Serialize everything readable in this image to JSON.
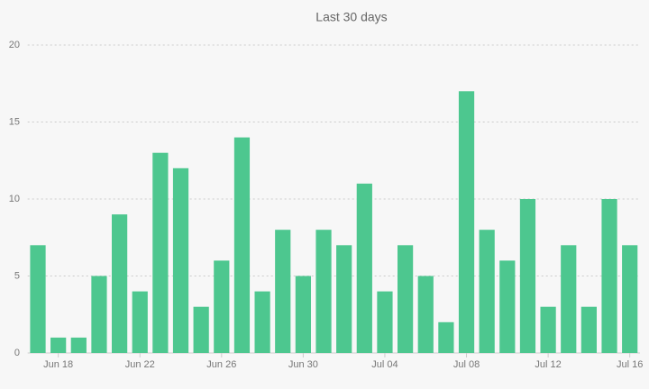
{
  "chart_data": {
    "type": "bar",
    "title": "Last 30 days",
    "categories": [
      null,
      "Jun 18",
      null,
      null,
      null,
      "Jun 22",
      null,
      null,
      null,
      "Jun 26",
      null,
      null,
      null,
      "Jun 30",
      null,
      null,
      null,
      "Jul 04",
      null,
      null,
      null,
      "Jul 08",
      null,
      null,
      null,
      "Jul 12",
      null,
      null,
      null,
      "Jul 16"
    ],
    "values": [
      7,
      1,
      1,
      5,
      9,
      4,
      13,
      12,
      3,
      6,
      14,
      4,
      8,
      5,
      8,
      7,
      11,
      4,
      7,
      5,
      2,
      17,
      8,
      6,
      10,
      3,
      7,
      3,
      10,
      7
    ],
    "color": "#4dc78f",
    "ylim": [
      0,
      20
    ],
    "yticks": [
      0,
      5,
      10,
      15,
      20
    ],
    "grid": true
  }
}
